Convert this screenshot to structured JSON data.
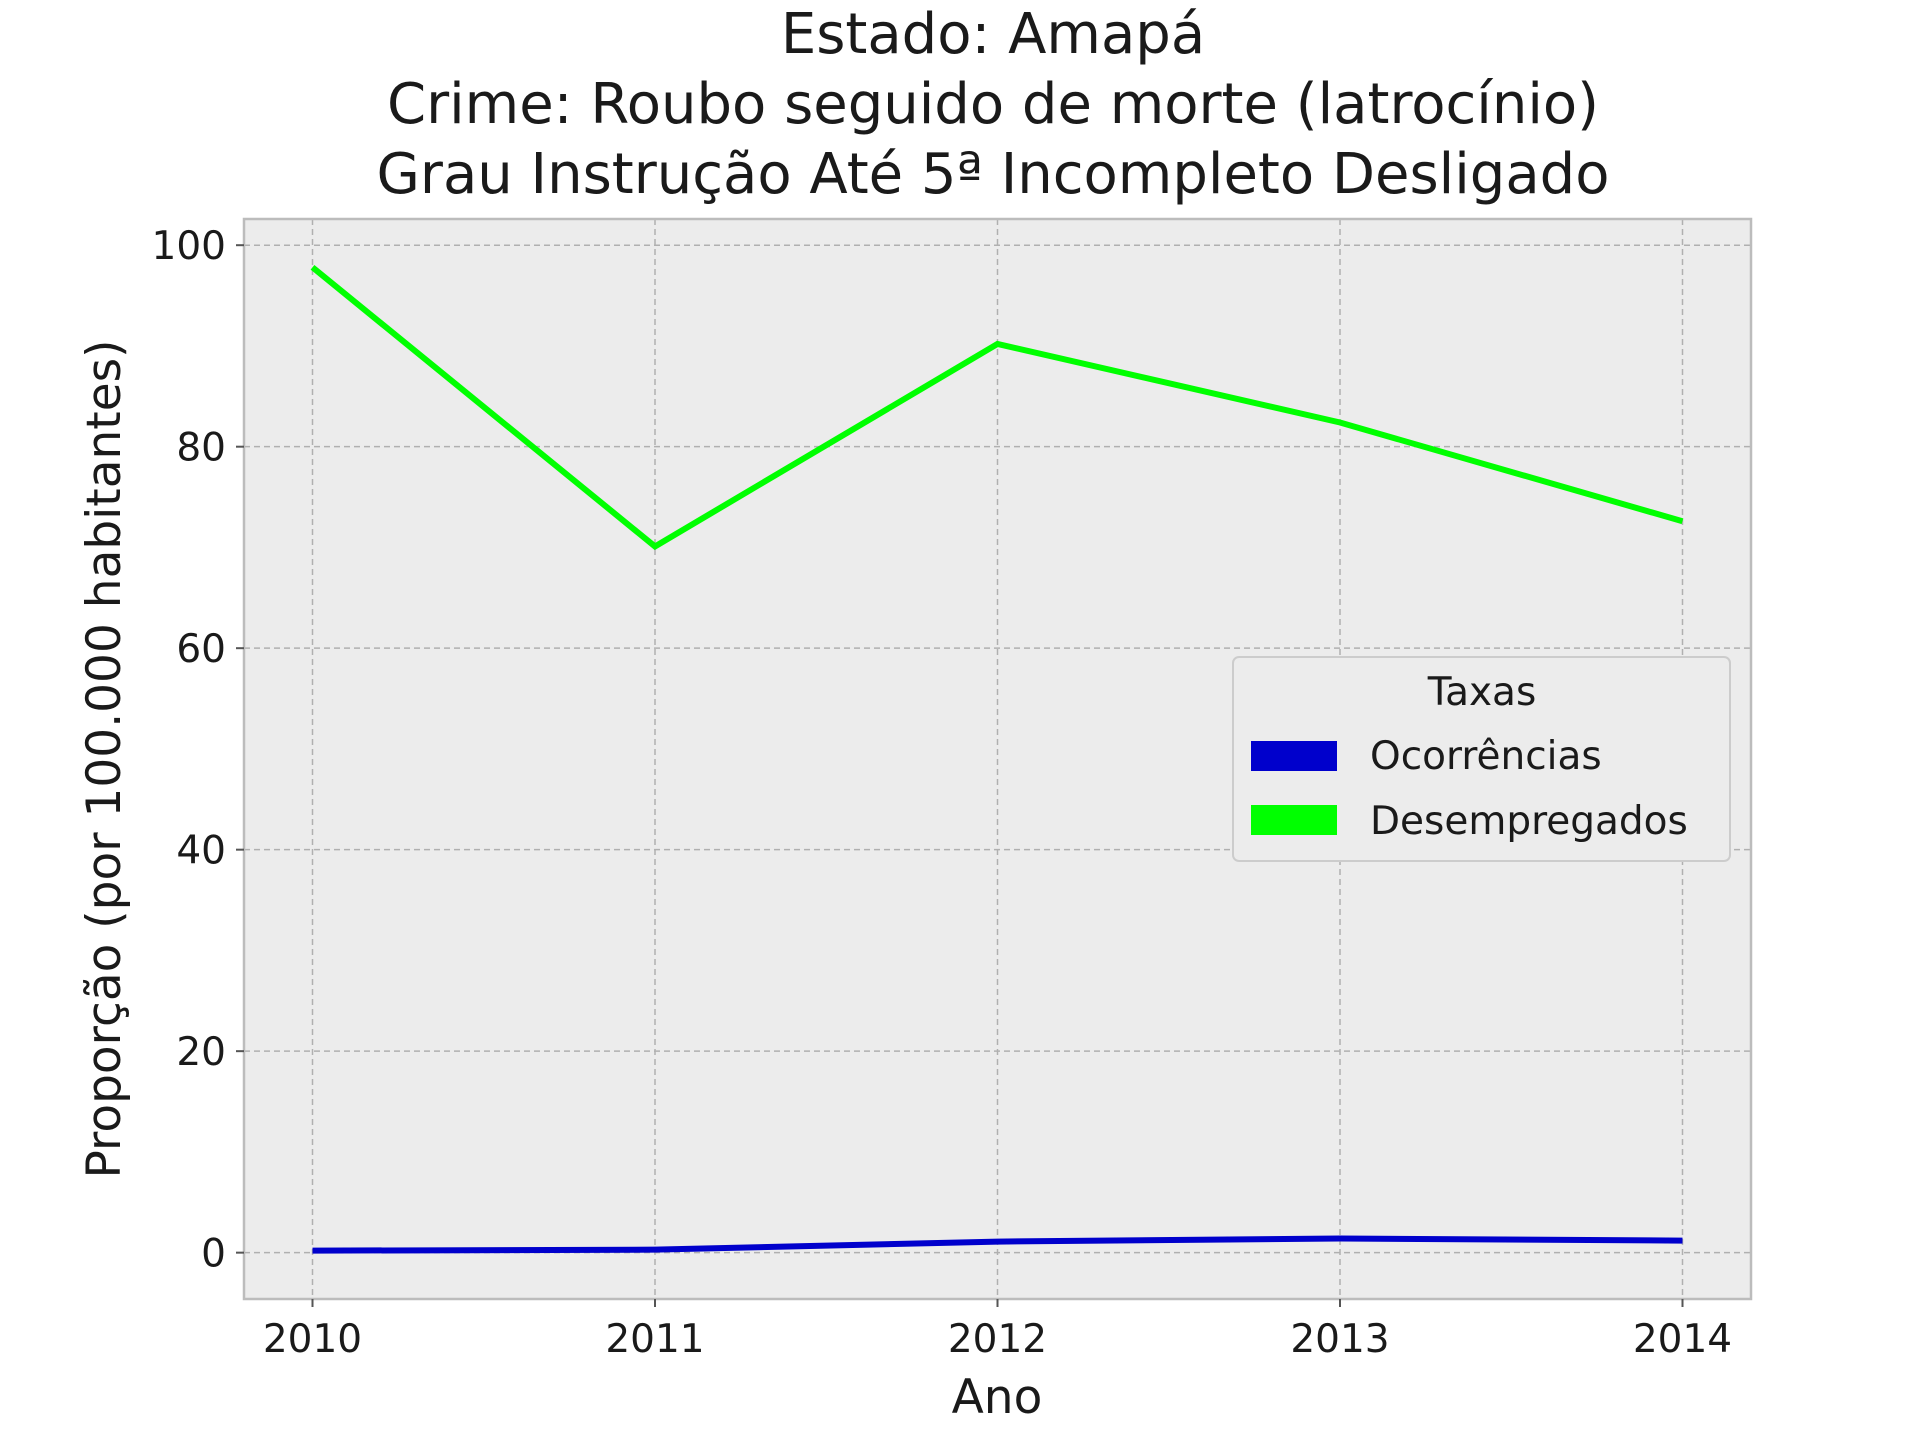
{
  "chart_data": {
    "type": "line",
    "title_lines": [
      "Estado: Amapá",
      "Crime: Roubo seguido de morte (latrocínio)",
      "Grau Instrução  Até 5ª Incompleto   Desligado"
    ],
    "xlabel": "Ano",
    "ylabel": "Proporção (por 100.000 habitantes)",
    "x": [
      2010,
      2011,
      2012,
      2013,
      2014
    ],
    "x_tick_labels": [
      "2010",
      "2011",
      "2012",
      "2013",
      "2014"
    ],
    "y_ticks": [
      0,
      20,
      40,
      60,
      80,
      100
    ],
    "y_tick_labels": [
      "0",
      "20",
      "40",
      "60",
      "80",
      "100"
    ],
    "xlim": [
      2009.8,
      2014.2
    ],
    "ylim": [
      -4.6,
      102.6
    ],
    "grid": true,
    "legend": {
      "title": "Taxas",
      "placement": "center-right"
    },
    "series": [
      {
        "name": "Ocorrências",
        "color": "#0000cc",
        "values": [
          0.2,
          0.3,
          1.1,
          1.4,
          1.2
        ]
      },
      {
        "name": "Desempregados",
        "color": "#00ff00",
        "values": [
          97.8,
          70.1,
          90.2,
          82.4,
          72.6
        ]
      }
    ],
    "colors": {
      "plot_background": "#ececec",
      "grid": "#b0b0b0",
      "axes_edge": "#bcbcbc"
    }
  }
}
